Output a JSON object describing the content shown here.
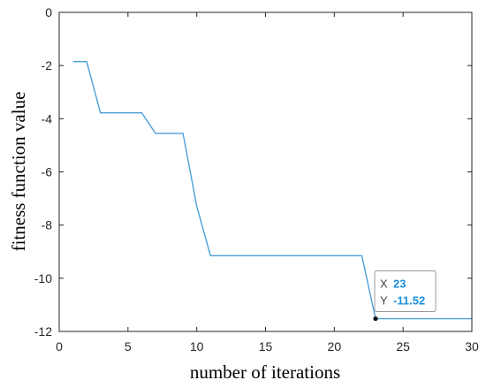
{
  "chart_data": {
    "type": "line",
    "title": "",
    "xlabel": "number of iterations",
    "ylabel": "fitness function value",
    "xlim": [
      0,
      30
    ],
    "ylim": [
      -12,
      0
    ],
    "xticks": [
      0,
      5,
      10,
      15,
      20,
      25,
      30
    ],
    "yticks": [
      0,
      -2,
      -4,
      -6,
      -8,
      -10,
      -12
    ],
    "grid": false,
    "colors": {
      "line": "#4a9fd8",
      "axis": "#262626",
      "tooltip_value": "#1a8fdc"
    },
    "series": [
      {
        "x": [
          1,
          2,
          3,
          4,
          5,
          6,
          7,
          8,
          9,
          10,
          11,
          12,
          13,
          14,
          15,
          16,
          17,
          18,
          19,
          20,
          21,
          22,
          23,
          24,
          25,
          26,
          27,
          28,
          29,
          30
        ],
        "values": [
          -1.85,
          -1.85,
          -3.78,
          -3.78,
          -3.78,
          -3.78,
          -4.55,
          -4.55,
          -4.55,
          -7.3,
          -9.15,
          -9.15,
          -9.15,
          -9.15,
          -9.15,
          -9.15,
          -9.15,
          -9.15,
          -9.15,
          -9.15,
          -9.15,
          -9.15,
          -11.52,
          -11.52,
          -11.52,
          -11.52,
          -11.52,
          -11.52,
          -11.52,
          -11.52
        ]
      }
    ],
    "datatip": {
      "x_label": "X",
      "x_value": "23",
      "y_label": "Y",
      "y_value": "-11.52",
      "x": 23,
      "y": -11.52
    }
  }
}
